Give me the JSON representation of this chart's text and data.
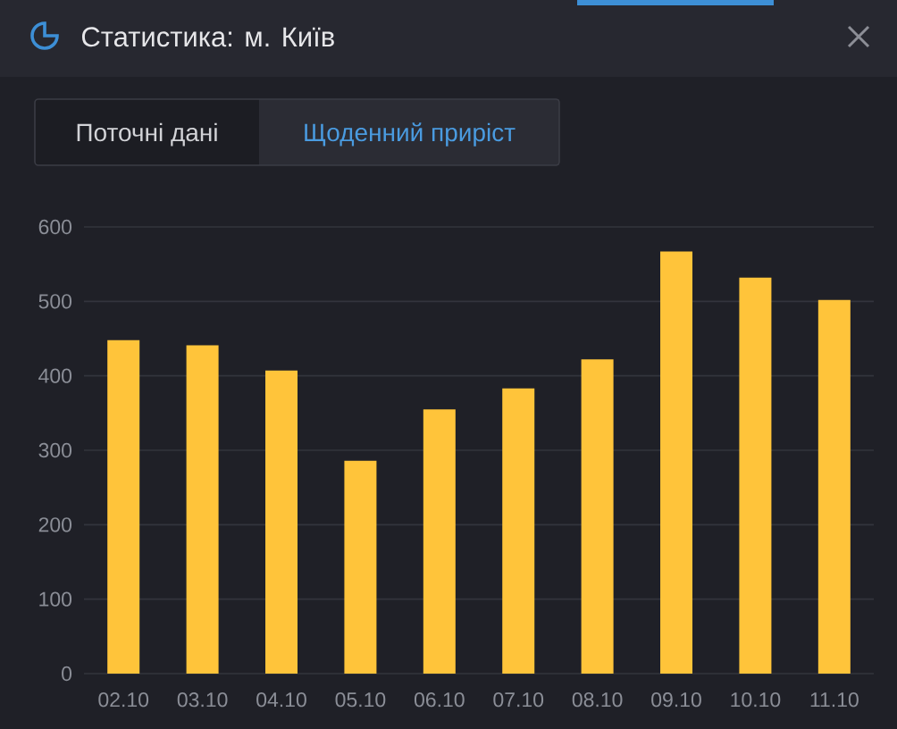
{
  "chart_data": {
    "type": "bar",
    "title": "Статистика: м. Київ",
    "annotations": [
      "Поточні дані",
      "Щоденний приріст"
    ],
    "categories": [
      "02.10",
      "03.10",
      "04.10",
      "05.10",
      "06.10",
      "07.10",
      "08.10",
      "09.10",
      "10.10",
      "11.10"
    ],
    "values": [
      448,
      441,
      407,
      286,
      355,
      383,
      422,
      567,
      532,
      502
    ],
    "color": "#ffc43a",
    "ylim": [
      0,
      600
    ],
    "yticks": [
      0,
      100,
      200,
      300,
      400,
      500,
      600
    ],
    "grid": "y"
  }
}
